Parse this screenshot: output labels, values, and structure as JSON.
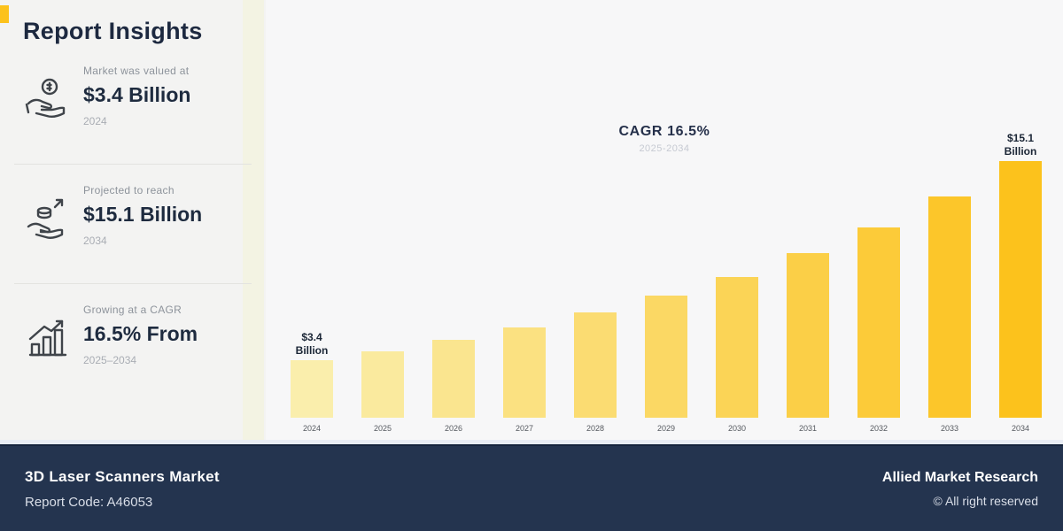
{
  "title": "Report Insights",
  "accent_color": "#fcc21c",
  "panel": {
    "cards": [
      {
        "icon": "money-in-hand-icon",
        "caption": "Market was valued at",
        "value": "$3.4 Billion",
        "year": "2024"
      },
      {
        "icon": "investment-hand-icon",
        "caption": "Projected to reach",
        "value": "$15.1 Billion",
        "year": "2034"
      },
      {
        "icon": "growth-chart-icon",
        "caption": "Growing at a CAGR",
        "value": "16.5% From",
        "year": "2025–2034"
      }
    ]
  },
  "chart_data": {
    "type": "bar",
    "title": "CAGR 16.5%",
    "subtitle": "2025-2034",
    "categories": [
      "2024",
      "2025",
      "2026",
      "2027",
      "2028",
      "2029",
      "2030",
      "2031",
      "2032",
      "2033",
      "2034"
    ],
    "values": [
      3.4,
      3.9,
      4.6,
      5.3,
      6.2,
      7.2,
      8.3,
      9.7,
      11.2,
      13.0,
      15.1
    ],
    "ylim": [
      0,
      16
    ],
    "grid": false,
    "legend": "none",
    "bar_color_start": "#faeeac",
    "bar_color_end": "#fcc21c",
    "annotations": [
      {
        "index": 0,
        "lines": [
          "$3.4",
          "Billion"
        ]
      },
      {
        "index": 10,
        "lines": [
          "$15.1",
          "Billion"
        ]
      }
    ]
  },
  "footer": {
    "market_name": "3D Laser Scanners Market",
    "report_code": "Report Code: A46053",
    "brand": "Allied Market Research",
    "copyright": "© All right reserved"
  }
}
